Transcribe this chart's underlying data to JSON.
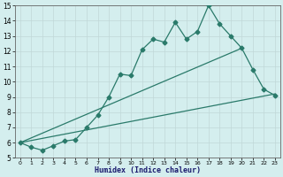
{
  "xlabel": "Humidex (Indice chaleur)",
  "background_color": "#d4eeee",
  "grid_color": "#c0d8d8",
  "line_color": "#2a7a6a",
  "xlim": [
    -0.5,
    23.5
  ],
  "ylim": [
    5,
    15
  ],
  "xticks": [
    0,
    1,
    2,
    3,
    4,
    5,
    6,
    7,
    8,
    9,
    10,
    11,
    12,
    13,
    14,
    15,
    16,
    17,
    18,
    19,
    20,
    21,
    22,
    23
  ],
  "yticks": [
    5,
    6,
    7,
    8,
    9,
    10,
    11,
    12,
    13,
    14,
    15
  ],
  "line1_x": [
    0,
    1,
    2,
    3,
    4,
    5,
    6,
    7,
    8,
    9,
    10,
    11,
    12,
    13,
    14,
    15,
    16,
    17,
    18,
    19,
    20,
    21,
    22,
    23
  ],
  "line1_y": [
    6.0,
    5.7,
    5.5,
    5.8,
    6.1,
    6.2,
    7.0,
    7.8,
    9.0,
    10.5,
    10.4,
    12.1,
    12.8,
    12.6,
    13.9,
    12.8,
    13.3,
    15.0,
    13.8,
    13.0,
    12.2,
    10.8,
    9.5,
    9.1
  ],
  "line2_x": [
    0,
    23
  ],
  "line2_y": [
    6.0,
    9.2
  ],
  "line3_x": [
    0,
    20
  ],
  "line3_y": [
    6.0,
    12.2
  ],
  "marker": "D",
  "marker_size": 2.5,
  "linewidth": 0.9
}
